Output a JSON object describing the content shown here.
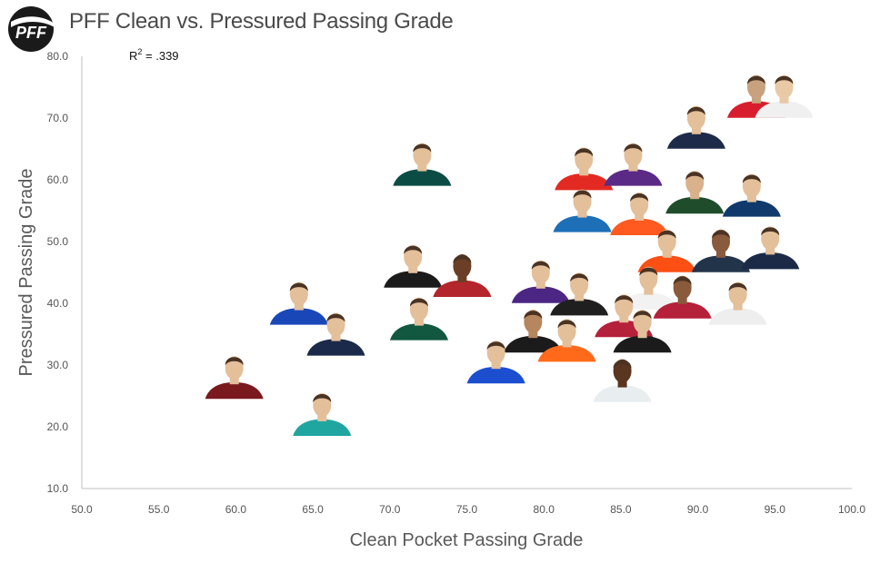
{
  "header": {
    "logo_text": "PFF",
    "title": "PFF Clean vs. Pressured Passing Grade"
  },
  "chart_data": {
    "type": "scatter",
    "title": "PFF Clean vs. Pressured Passing Grade",
    "xlabel": "Clean Pocket Passing Grade",
    "ylabel": "Pressured Passing Grade",
    "xlim": [
      50,
      100
    ],
    "ylim": [
      10,
      80
    ],
    "xticks": [
      "50.0",
      "55.0",
      "60.0",
      "65.0",
      "70.0",
      "75.0",
      "80.0",
      "85.0",
      "90.0",
      "95.0",
      "100.0"
    ],
    "yticks": [
      "10.0",
      "20.0",
      "30.0",
      "40.0",
      "50.0",
      "60.0",
      "70.0",
      "80.0"
    ],
    "grid": false,
    "annotation": {
      "prefix": "R",
      "superscript": "2",
      "value": " = .339"
    },
    "points": [
      {
        "x": 93.8,
        "y": 74.0,
        "jersey": "#d81e2e",
        "shade": "#c8a27e"
      },
      {
        "x": 95.6,
        "y": 74.0,
        "jersey": "#f0f0f0",
        "shade": "#e9c9a6"
      },
      {
        "x": 89.9,
        "y": 69.0,
        "jersey": "#1d2a4a",
        "shade": "#e3bf9a"
      },
      {
        "x": 72.1,
        "y": 63.0,
        "jersey": "#0b4d44",
        "shade": "#e3bf9a"
      },
      {
        "x": 82.6,
        "y": 62.3,
        "jersey": "#e32a22",
        "shade": "#e3bf9a"
      },
      {
        "x": 85.8,
        "y": 63.0,
        "jersey": "#5b2a86",
        "shade": "#e3bf9a"
      },
      {
        "x": 89.8,
        "y": 58.5,
        "jersey": "#1f4d2c",
        "shade": "#d9b28c"
      },
      {
        "x": 93.5,
        "y": 58.0,
        "jersey": "#0f3a6b",
        "shade": "#e3bf9a"
      },
      {
        "x": 86.2,
        "y": 55.0,
        "jersey": "#ff5a1f",
        "shade": "#e3bf9a"
      },
      {
        "x": 82.5,
        "y": 55.5,
        "jersey": "#1d6fb8",
        "shade": "#e3bf9a"
      },
      {
        "x": 88.0,
        "y": 49.0,
        "jersey": "#fb4f14",
        "shade": "#e3bf9a"
      },
      {
        "x": 91.5,
        "y": 49.0,
        "jersey": "#22344a",
        "shade": "#8a5a3c"
      },
      {
        "x": 94.7,
        "y": 49.5,
        "jersey": "#1c2a48",
        "shade": "#e3bf9a"
      },
      {
        "x": 71.5,
        "y": 46.5,
        "jersey": "#1b1b1b",
        "shade": "#e3bf9a"
      },
      {
        "x": 74.7,
        "y": 45.0,
        "jersey": "#b3262c",
        "shade": "#6b3f25"
      },
      {
        "x": 79.8,
        "y": 44.0,
        "jersey": "#4b2683",
        "shade": "#e3bf9a"
      },
      {
        "x": 82.3,
        "y": 42.0,
        "jersey": "#1f1f1f",
        "shade": "#e3bf9a"
      },
      {
        "x": 86.8,
        "y": 43.0,
        "jersey": "#f2f2f2",
        "shade": "#e3bf9a"
      },
      {
        "x": 89.0,
        "y": 41.5,
        "jersey": "#b5203b",
        "shade": "#8a5a3c"
      },
      {
        "x": 92.6,
        "y": 40.5,
        "jersey": "#eeeeee",
        "shade": "#e3bf9a"
      },
      {
        "x": 85.2,
        "y": 38.5,
        "jersey": "#b5203b",
        "shade": "#e3bf9a"
      },
      {
        "x": 71.9,
        "y": 38.0,
        "jersey": "#125740",
        "shade": "#e3bf9a"
      },
      {
        "x": 64.1,
        "y": 40.5,
        "jersey": "#1a47b8",
        "shade": "#e3bf9a"
      },
      {
        "x": 66.5,
        "y": 35.5,
        "jersey": "#1b2a4a",
        "shade": "#e3bf9a"
      },
      {
        "x": 79.3,
        "y": 36.0,
        "jersey": "#1b1b1b",
        "shade": "#b6865f"
      },
      {
        "x": 81.5,
        "y": 34.5,
        "jersey": "#ff6a1a",
        "shade": "#e3bf9a"
      },
      {
        "x": 86.4,
        "y": 36.0,
        "jersey": "#1b1b1b",
        "shade": "#e3bf9a"
      },
      {
        "x": 76.9,
        "y": 31.0,
        "jersey": "#1b4fd0",
        "shade": "#e3bf9a"
      },
      {
        "x": 85.1,
        "y": 28.0,
        "jersey": "#e8eef0",
        "shade": "#5a3520"
      },
      {
        "x": 59.9,
        "y": 28.5,
        "jersey": "#7a1a1e",
        "shade": "#e3bf9a"
      },
      {
        "x": 65.6,
        "y": 22.5,
        "jersey": "#1fa6a0",
        "shade": "#e3bf9a"
      }
    ]
  }
}
